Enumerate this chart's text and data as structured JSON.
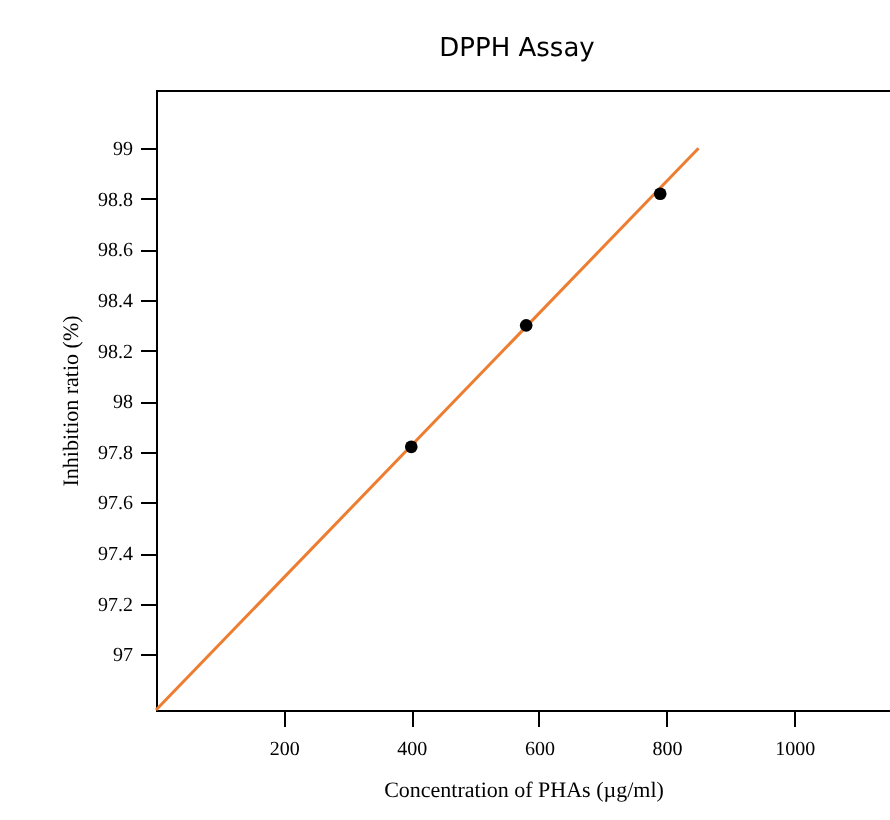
{
  "chart_data": {
    "type": "scatter",
    "title": "DPPH Assay",
    "xlabel": "Concentration of PHAs (µg/ml)",
    "ylabel": "Inhibition ratio (%)",
    "xlim": [
      0,
      1150
    ],
    "ylim": [
      96.78,
      99.23
    ],
    "xticks": [
      200,
      400,
      600,
      800,
      1000
    ],
    "yticks": [
      97,
      97.2,
      97.4,
      97.6,
      97.8,
      98,
      98.2,
      98.4,
      98.6,
      98.8,
      99
    ],
    "grid": false,
    "legend": false,
    "series": [
      {
        "type": "line",
        "marker": "none",
        "color": "#ed7d31",
        "x": [
          0,
          850
        ],
        "values": [
          96.78,
          99.0
        ]
      },
      {
        "type": "scatter",
        "marker": "circle",
        "color": "#000000",
        "x": [
          400,
          580,
          790
        ],
        "values": [
          97.82,
          98.3,
          98.82
        ]
      }
    ]
  }
}
